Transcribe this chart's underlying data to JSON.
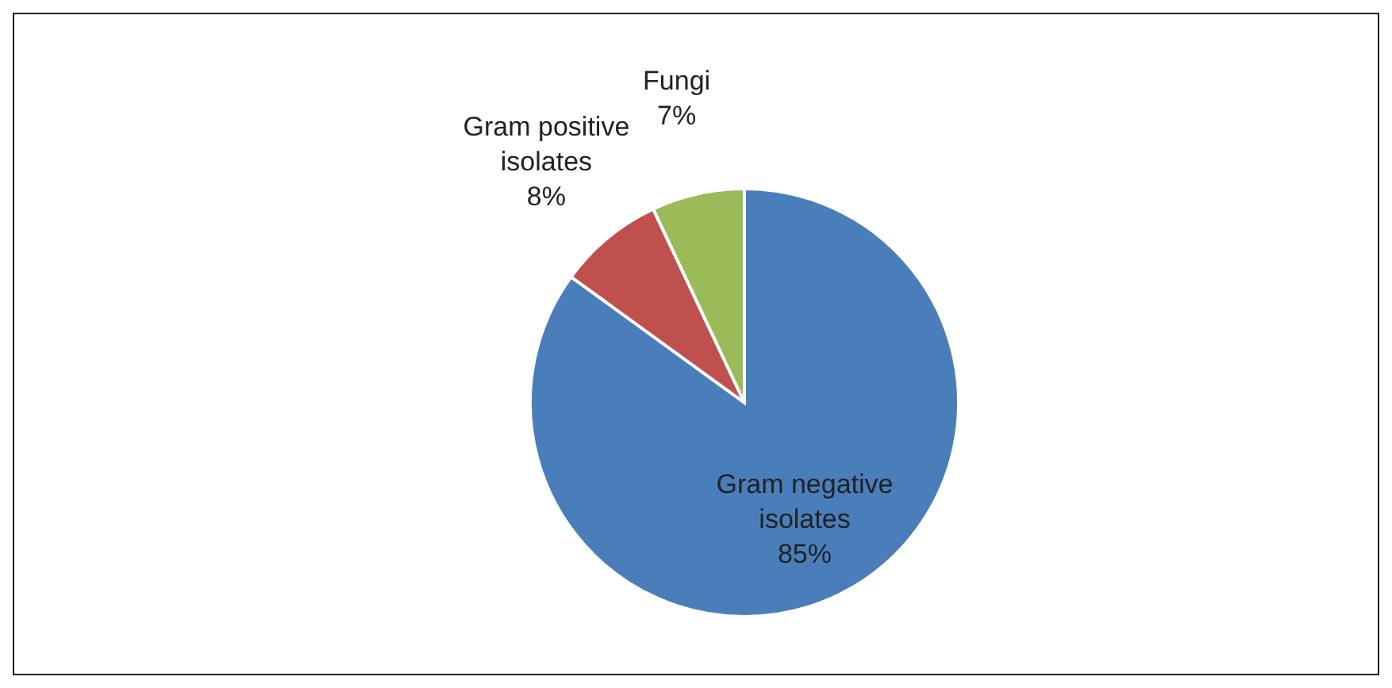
{
  "chart_data": {
    "type": "pie",
    "categories": [
      "Gram negative isolates",
      "Gram positive isolates",
      "Fungi"
    ],
    "values": [
      85,
      8,
      7
    ],
    "colors": [
      "#4a7ebb",
      "#c0504d",
      "#9bbb59"
    ],
    "value_labels": [
      "85%",
      "8%",
      "7%"
    ],
    "legend": false
  }
}
